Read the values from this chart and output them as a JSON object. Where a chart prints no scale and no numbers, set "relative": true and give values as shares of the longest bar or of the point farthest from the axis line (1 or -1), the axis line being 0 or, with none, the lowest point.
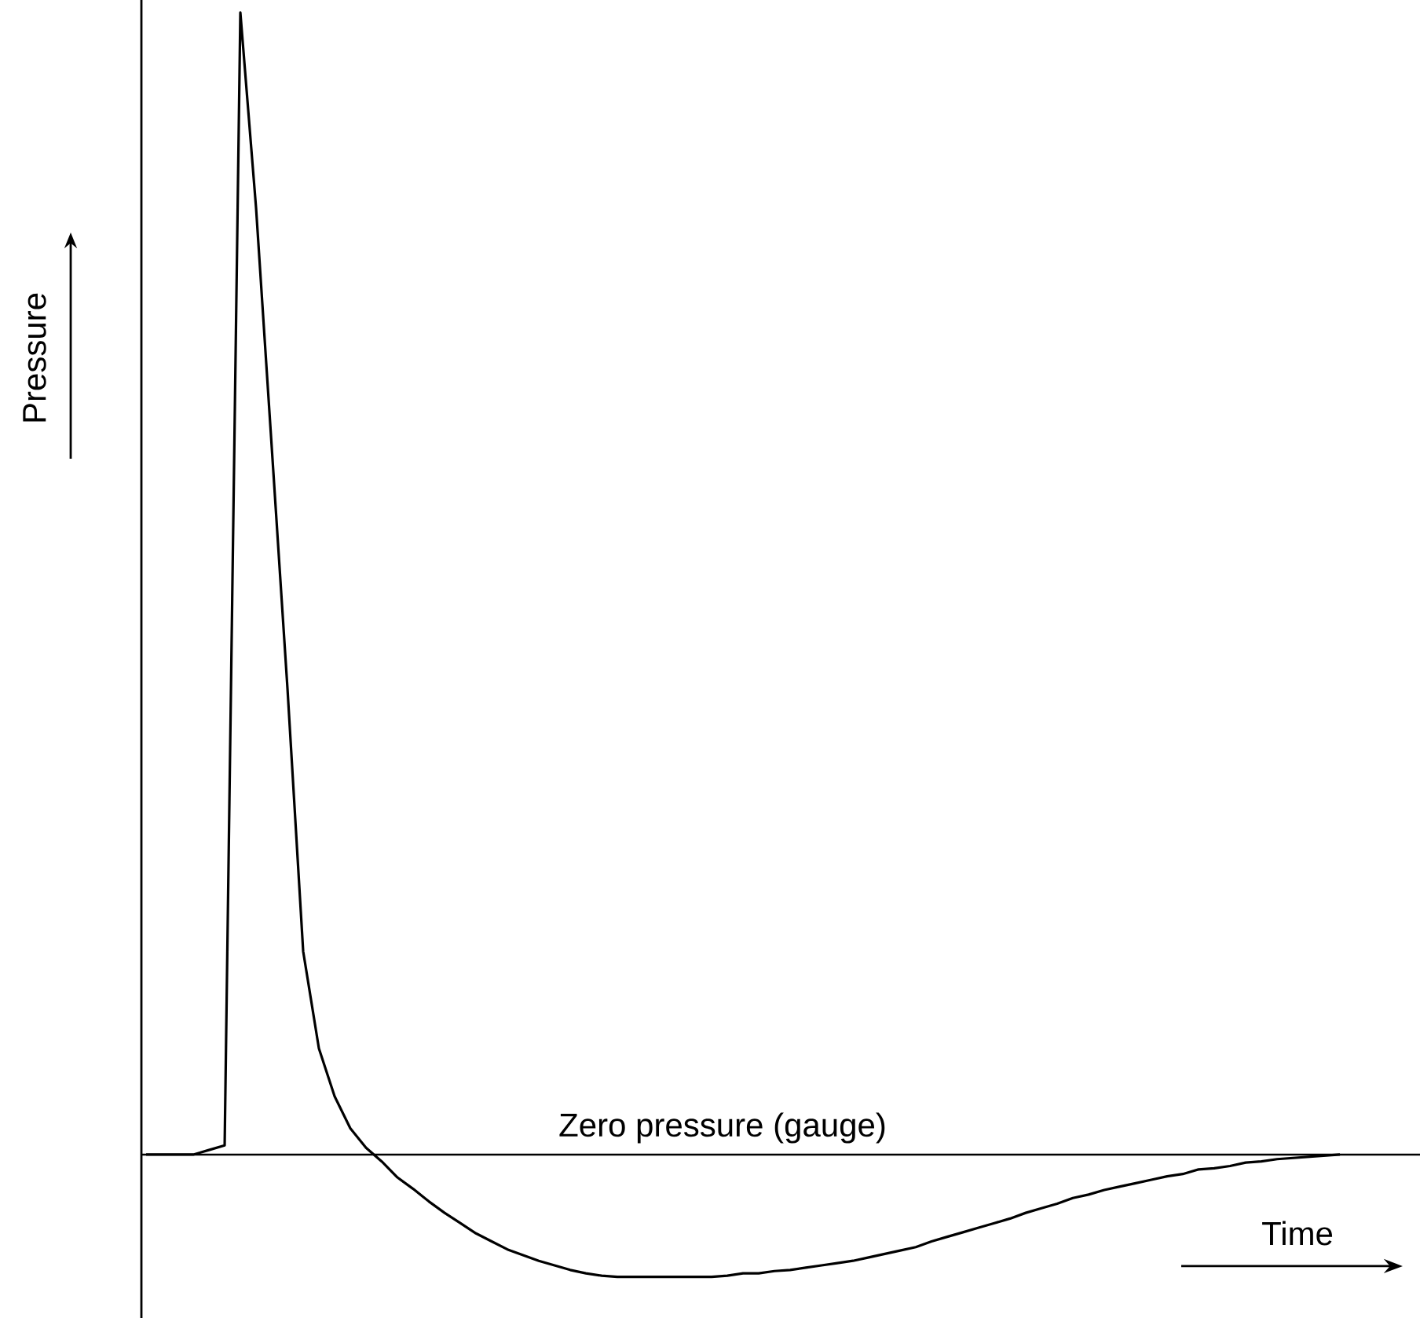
{
  "chart_data": {
    "type": "line",
    "relative": true,
    "xlabel": "Time",
    "ylabel": "Pressure",
    "categories": [
      null,
      null,
      null,
      null,
      null,
      null,
      null,
      null,
      null,
      null,
      null,
      null,
      null,
      null,
      null,
      null,
      null,
      null,
      null,
      null,
      null,
      null,
      null,
      null,
      null,
      null,
      null,
      null,
      null,
      null,
      null,
      null,
      null,
      null,
      null,
      null,
      null,
      null,
      null,
      null,
      null,
      null,
      null,
      null,
      null,
      null,
      null,
      null,
      null,
      null,
      null,
      null,
      null,
      null,
      null,
      null,
      null,
      null,
      null,
      null,
      null,
      null,
      null,
      null,
      null,
      null,
      null,
      null,
      null,
      null,
      null,
      null,
      null,
      null,
      null,
      null,
      null
    ],
    "series": [
      {
        "color": "#000000",
        "values": [
          0,
          0,
          0,
          0,
          0.004,
          0.008,
          1.0,
          0.829,
          0.619,
          0.408,
          0.178,
          0.093,
          0.051,
          0.023,
          0.006,
          -0.006,
          -0.02,
          -0.03,
          -0.041,
          -0.051,
          -0.06,
          -0.069,
          -0.076,
          -0.083,
          -0.088,
          -0.093,
          -0.097,
          -0.101,
          -0.104,
          -0.106,
          -0.107,
          -0.107,
          -0.107,
          -0.107,
          -0.107,
          -0.107,
          -0.107,
          -0.106,
          -0.104,
          -0.104,
          -0.102,
          -0.101,
          -0.099,
          -0.097,
          -0.095,
          -0.093,
          -0.09,
          -0.087,
          -0.084,
          -0.081,
          -0.076,
          -0.072,
          -0.068,
          -0.064,
          -0.06,
          -0.056,
          -0.051,
          -0.047,
          -0.043,
          -0.038,
          -0.035,
          -0.031,
          -0.028,
          -0.025,
          -0.022,
          -0.019,
          -0.017,
          -0.013,
          -0.012,
          -0.01,
          -0.007,
          -0.006,
          -0.004,
          -0.003,
          -0.002,
          -0.001,
          0
        ]
      }
    ],
    "ref_lines": [
      {
        "axis": "y",
        "value": 0,
        "label": "Zero pressure (gauge)"
      }
    ],
    "line_style": "solid",
    "marker": "none"
  }
}
